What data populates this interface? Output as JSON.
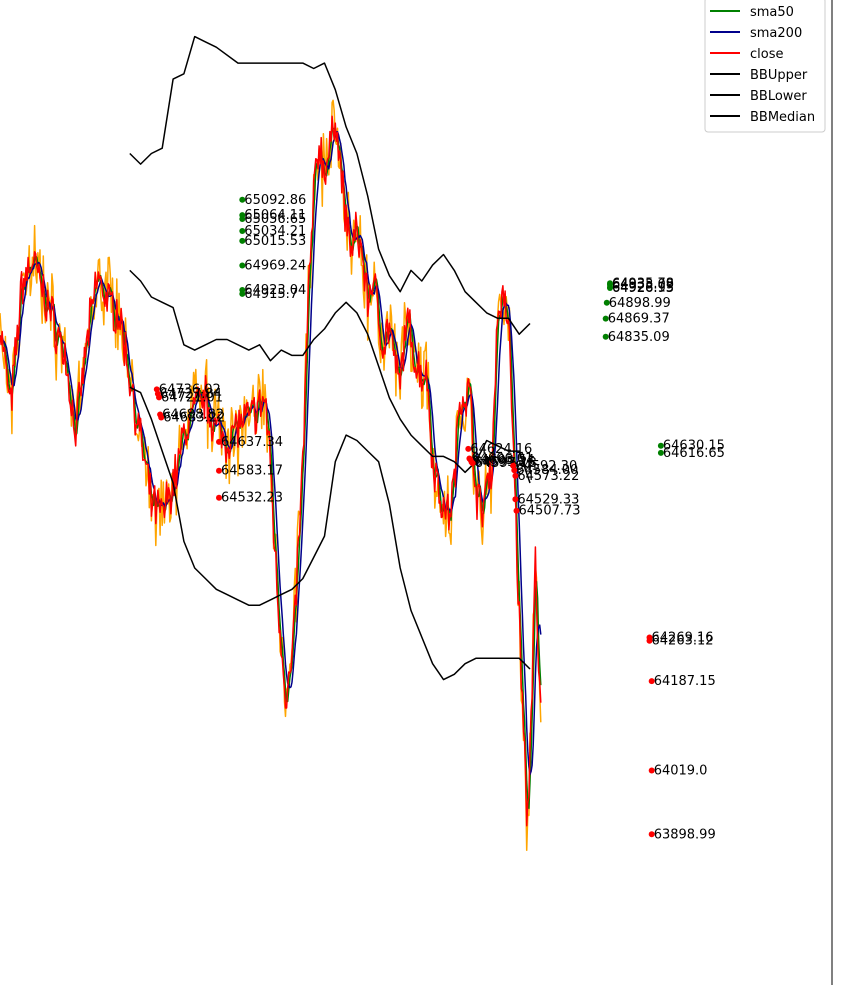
{
  "chart_data": {
    "type": "line",
    "title": "",
    "xlabel": "",
    "ylabel": "",
    "grid": false,
    "legend_position": "top-right",
    "ylim": [
      63700,
      65450
    ],
    "x_range": [
      0,
      1000
    ],
    "series": [
      {
        "name": "sma50",
        "color": "#008000"
      },
      {
        "name": "sma200",
        "color": "#00008b"
      },
      {
        "name": "close",
        "color": "#ff0000"
      },
      {
        "name": "BBUpper",
        "color": "#000000"
      },
      {
        "name": "BBLower",
        "color": "#000000"
      },
      {
        "name": "BBMedian",
        "color": "#000000"
      }
    ],
    "close_keypoints": [
      [
        0,
        64860
      ],
      [
        20,
        64700
      ],
      [
        40,
        64930
      ],
      [
        60,
        64980
      ],
      [
        80,
        64920
      ],
      [
        100,
        64860
      ],
      [
        120,
        64800
      ],
      [
        140,
        64650
      ],
      [
        160,
        64820
      ],
      [
        180,
        64950
      ],
      [
        200,
        64900
      ],
      [
        220,
        64880
      ],
      [
        240,
        64760
      ],
      [
        260,
        64640
      ],
      [
        280,
        64520
      ],
      [
        300,
        64500
      ],
      [
        320,
        64560
      ],
      [
        330,
        64600
      ],
      [
        340,
        64650
      ],
      [
        360,
        64700
      ],
      [
        380,
        64720
      ],
      [
        400,
        64660
      ],
      [
        420,
        64640
      ],
      [
        440,
        64670
      ],
      [
        460,
        64680
      ],
      [
        480,
        64700
      ],
      [
        490,
        64720
      ],
      [
        500,
        64600
      ],
      [
        510,
        64400
      ],
      [
        520,
        64260
      ],
      [
        530,
        64150
      ],
      [
        540,
        64220
      ],
      [
        550,
        64400
      ],
      [
        560,
        64600
      ],
      [
        570,
        64900
      ],
      [
        580,
        65100
      ],
      [
        590,
        65200
      ],
      [
        600,
        65150
      ],
      [
        610,
        65180
      ],
      [
        620,
        65260
      ],
      [
        630,
        65150
      ],
      [
        640,
        65050
      ],
      [
        650,
        65000
      ],
      [
        660,
        65030
      ],
      [
        670,
        64990
      ],
      [
        680,
        64900
      ],
      [
        690,
        64950
      ],
      [
        700,
        64870
      ],
      [
        710,
        64820
      ],
      [
        720,
        64860
      ],
      [
        730,
        64780
      ],
      [
        740,
        64740
      ],
      [
        750,
        64860
      ],
      [
        760,
        64840
      ],
      [
        770,
        64780
      ],
      [
        780,
        64770
      ],
      [
        790,
        64760
      ],
      [
        800,
        64600
      ],
      [
        810,
        64560
      ],
      [
        820,
        64510
      ],
      [
        830,
        64500
      ],
      [
        840,
        64560
      ],
      [
        850,
        64720
      ],
      [
        860,
        64730
      ],
      [
        870,
        64720
      ],
      [
        880,
        64550
      ],
      [
        890,
        64500
      ],
      [
        900,
        64560
      ],
      [
        910,
        64600
      ],
      [
        920,
        64880
      ],
      [
        930,
        64910
      ],
      [
        940,
        64860
      ],
      [
        950,
        64620
      ],
      [
        960,
        64300
      ],
      [
        970,
        64050
      ],
      [
        975,
        63900
      ],
      [
        980,
        64060
      ],
      [
        990,
        64400
      ],
      [
        995,
        64200
      ],
      [
        1000,
        64150
      ]
    ],
    "bb_upper": [
      [
        240,
        65180
      ],
      [
        260,
        65160
      ],
      [
        280,
        65180
      ],
      [
        300,
        65190
      ],
      [
        320,
        65320
      ],
      [
        340,
        65330
      ],
      [
        360,
        65400
      ],
      [
        380,
        65390
      ],
      [
        400,
        65380
      ],
      [
        440,
        65350
      ],
      [
        480,
        65350
      ],
      [
        520,
        65350
      ],
      [
        560,
        65350
      ],
      [
        580,
        65340
      ],
      [
        600,
        65350
      ],
      [
        620,
        65300
      ],
      [
        640,
        65230
      ],
      [
        660,
        65180
      ],
      [
        680,
        65100
      ],
      [
        700,
        65000
      ],
      [
        720,
        64950
      ],
      [
        740,
        64920
      ],
      [
        760,
        64960
      ],
      [
        780,
        64940
      ],
      [
        800,
        64970
      ],
      [
        820,
        64990
      ],
      [
        840,
        64960
      ],
      [
        860,
        64920
      ],
      [
        880,
        64900
      ],
      [
        900,
        64880
      ],
      [
        920,
        64870
      ],
      [
        940,
        64870
      ],
      [
        960,
        64840
      ],
      [
        980,
        64860
      ]
    ],
    "bb_median": [
      [
        240,
        64960
      ],
      [
        260,
        64940
      ],
      [
        280,
        64910
      ],
      [
        300,
        64900
      ],
      [
        320,
        64890
      ],
      [
        340,
        64820
      ],
      [
        360,
        64810
      ],
      [
        380,
        64820
      ],
      [
        400,
        64830
      ],
      [
        420,
        64830
      ],
      [
        440,
        64820
      ],
      [
        460,
        64810
      ],
      [
        480,
        64820
      ],
      [
        500,
        64790
      ],
      [
        520,
        64810
      ],
      [
        540,
        64800
      ],
      [
        560,
        64800
      ],
      [
        580,
        64830
      ],
      [
        600,
        64850
      ],
      [
        620,
        64880
      ],
      [
        640,
        64900
      ],
      [
        660,
        64880
      ],
      [
        680,
        64840
      ],
      [
        700,
        64780
      ],
      [
        720,
        64720
      ],
      [
        740,
        64680
      ],
      [
        760,
        64650
      ],
      [
        780,
        64630
      ],
      [
        800,
        64610
      ],
      [
        820,
        64610
      ],
      [
        840,
        64600
      ],
      [
        860,
        64580
      ],
      [
        880,
        64600
      ],
      [
        900,
        64640
      ],
      [
        920,
        64630
      ],
      [
        940,
        64620
      ],
      [
        960,
        64620
      ],
      [
        980,
        64560
      ]
    ],
    "bb_lower": [
      [
        240,
        64740
      ],
      [
        260,
        64730
      ],
      [
        280,
        64680
      ],
      [
        300,
        64620
      ],
      [
        320,
        64560
      ],
      [
        340,
        64450
      ],
      [
        360,
        64400
      ],
      [
        380,
        64380
      ],
      [
        400,
        64360
      ],
      [
        420,
        64350
      ],
      [
        440,
        64340
      ],
      [
        460,
        64330
      ],
      [
        480,
        64330
      ],
      [
        500,
        64340
      ],
      [
        520,
        64350
      ],
      [
        540,
        64360
      ],
      [
        560,
        64380
      ],
      [
        580,
        64420
      ],
      [
        600,
        64460
      ],
      [
        620,
        64600
      ],
      [
        640,
        64650
      ],
      [
        660,
        64640
      ],
      [
        680,
        64620
      ],
      [
        700,
        64600
      ],
      [
        720,
        64520
      ],
      [
        740,
        64400
      ],
      [
        760,
        64320
      ],
      [
        780,
        64270
      ],
      [
        800,
        64220
      ],
      [
        820,
        64190
      ],
      [
        840,
        64200
      ],
      [
        860,
        64220
      ],
      [
        880,
        64230
      ],
      [
        900,
        64230
      ],
      [
        920,
        64230
      ],
      [
        940,
        64230
      ],
      [
        960,
        64230
      ],
      [
        980,
        64210
      ]
    ],
    "annotations": [
      {
        "x": 290,
        "y": 64736.02,
        "text": "64736.02",
        "color": "red"
      },
      {
        "x": 292,
        "y": 64727.84,
        "text": "64727.84",
        "color": "red"
      },
      {
        "x": 294,
        "y": 64721.01,
        "text": "64721.01",
        "color": "red"
      },
      {
        "x": 296,
        "y": 64688.82,
        "text": "64688.82",
        "color": "red"
      },
      {
        "x": 298,
        "y": 64683.22,
        "text": "64683.22",
        "color": "red"
      },
      {
        "x": 405,
        "y": 64637.34,
        "text": "64637.34",
        "color": "red"
      },
      {
        "x": 405,
        "y": 64583.17,
        "text": "64583.17",
        "color": "red"
      },
      {
        "x": 405,
        "y": 64532.23,
        "text": "64532.23",
        "color": "red"
      },
      {
        "x": 448,
        "y": 65092.86,
        "text": "65092.86",
        "color": "green"
      },
      {
        "x": 448,
        "y": 65064.11,
        "text": "65064.11",
        "color": "green"
      },
      {
        "x": 448,
        "y": 65056.65,
        "text": "65056.65",
        "color": "green"
      },
      {
        "x": 448,
        "y": 65034.21,
        "text": "65034.21",
        "color": "green"
      },
      {
        "x": 448,
        "y": 65015.53,
        "text": "65015.53",
        "color": "green"
      },
      {
        "x": 448,
        "y": 64969.24,
        "text": "64969.24",
        "color": "green"
      },
      {
        "x": 448,
        "y": 64923.04,
        "text": "64923.04",
        "color": "green"
      },
      {
        "x": 448,
        "y": 64915.7,
        "text": "64915.7",
        "color": "green"
      },
      {
        "x": 866,
        "y": 64624.16,
        "text": "64624.16",
        "color": "red"
      },
      {
        "x": 868,
        "y": 64606.01,
        "text": "64606.01",
        "color": "red"
      },
      {
        "x": 870,
        "y": 64603.54,
        "text": "64603.54",
        "color": "red"
      },
      {
        "x": 872,
        "y": 64599.25,
        "text": "64599.25",
        "color": "red"
      },
      {
        "x": 874,
        "y": 64597.18,
        "text": "64597.18",
        "color": "red"
      },
      {
        "x": 949,
        "y": 64592.3,
        "text": "64592.30",
        "color": "red"
      },
      {
        "x": 951,
        "y": 64584.0,
        "text": "64584.00",
        "color": "red"
      },
      {
        "x": 953,
        "y": 64573.22,
        "text": "64573.22",
        "color": "red"
      },
      {
        "x": 953,
        "y": 64529.33,
        "text": "64529.33",
        "color": "red"
      },
      {
        "x": 955,
        "y": 64507.73,
        "text": "64507.73",
        "color": "red"
      },
      {
        "x": 1128,
        "y": 64935.78,
        "text": "64935.78",
        "color": "green"
      },
      {
        "x": 1128,
        "y": 64933.09,
        "text": "64933.09",
        "color": "green"
      },
      {
        "x": 1128,
        "y": 64928.15,
        "text": "64928.15",
        "color": "green"
      },
      {
        "x": 1128,
        "y": 64926.93,
        "text": "64926.93",
        "color": "green"
      },
      {
        "x": 1122,
        "y": 64898.99,
        "text": "64898.99",
        "color": "green"
      },
      {
        "x": 1120,
        "y": 64869.37,
        "text": "64869.37",
        "color": "green"
      },
      {
        "x": 1120,
        "y": 64835.09,
        "text": "64835.09",
        "color": "green"
      },
      {
        "x": 1222,
        "y": 64630.15,
        "text": "64630.15",
        "color": "green"
      },
      {
        "x": 1222,
        "y": 64616.65,
        "text": "64616.65",
        "color": "green"
      },
      {
        "x": 1201,
        "y": 64269.16,
        "text": "64269.16",
        "color": "red"
      },
      {
        "x": 1201,
        "y": 64263.12,
        "text": "64263.12",
        "color": "red"
      },
      {
        "x": 1205,
        "y": 64187.15,
        "text": "64187.15",
        "color": "red"
      },
      {
        "x": 1205,
        "y": 64019.0,
        "text": "64019.0",
        "color": "red"
      },
      {
        "x": 1205,
        "y": 63898.99,
        "text": "63898.99",
        "color": "red"
      }
    ]
  }
}
